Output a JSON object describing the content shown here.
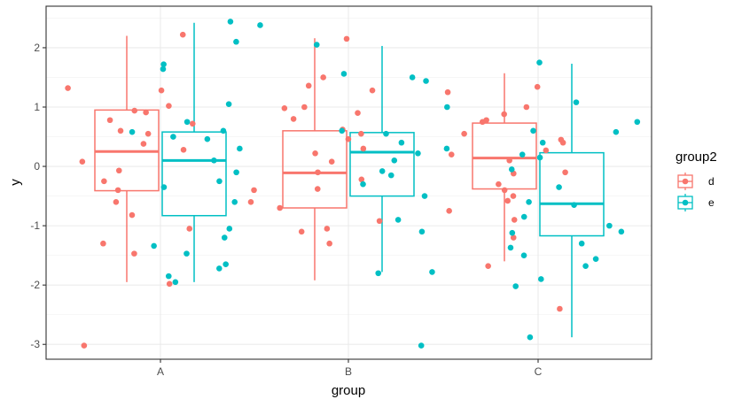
{
  "chart_data": {
    "type": "boxplot",
    "xlabel": "group",
    "ylabel": "y",
    "categories": [
      "A",
      "B",
      "C"
    ],
    "ylim": [
      -3.25,
      2.7
    ],
    "y_ticks": [
      -3,
      -2,
      -1,
      0,
      1,
      2
    ],
    "grid": true,
    "legend": {
      "title": "group2",
      "position": "right",
      "entries": [
        {
          "key": "d",
          "color": "#F8766D"
        },
        {
          "key": "e",
          "color": "#00BFC4"
        }
      ]
    },
    "series": [
      {
        "name": "d",
        "color": "#F8766D",
        "boxes": [
          {
            "category": "A",
            "min": -1.95,
            "q1": -0.41,
            "median": 0.25,
            "q3": 0.95,
            "max": 2.2
          },
          {
            "category": "B",
            "min": -1.92,
            "q1": -0.7,
            "median": -0.11,
            "q3": 0.6,
            "max": 2.16
          },
          {
            "category": "C",
            "min": -1.6,
            "q1": -0.38,
            "median": 0.14,
            "q3": 0.73,
            "max": 1.57
          }
        ],
        "points": [
          {
            "category": "A",
            "y": [
              2.22,
              1.32,
              0.94,
              0.78,
              0.6,
              0.38,
              0.08,
              -0.25,
              -0.82,
              -1.05,
              -1.98,
              -3.02,
              0.72,
              1.02,
              -0.07,
              0.28,
              -0.4,
              0.91,
              -1.3,
              1.28,
              -1.47,
              0.55,
              -0.6
            ]
          },
          {
            "category": "B",
            "y": [
              2.15,
              1.5,
              1.36,
              0.98,
              0.9,
              0.46,
              0.22,
              -0.1,
              -0.38,
              -0.6,
              -1.05,
              -1.3,
              -1.1,
              0.55,
              0.8,
              1.0,
              -0.7,
              -0.92,
              0.62,
              0.3,
              -0.22,
              -0.4,
              0.08,
              1.28
            ]
          },
          {
            "category": "C",
            "y": [
              1.25,
              0.78,
              0.75,
              0.4,
              0.1,
              -0.12,
              -0.5,
              -0.9,
              -1.2,
              -1.68,
              -2.4,
              0.27,
              0.55,
              1.34,
              1.0,
              -0.1,
              -0.3,
              0.45,
              -0.4,
              -0.58,
              0.88,
              0.2,
              -0.75
            ]
          }
        ]
      },
      {
        "name": "e",
        "color": "#00BFC4",
        "boxes": [
          {
            "category": "A",
            "min": -1.95,
            "q1": -0.83,
            "median": 0.1,
            "q3": 0.58,
            "max": 2.42
          },
          {
            "category": "B",
            "min": -1.78,
            "q1": -0.5,
            "median": 0.24,
            "q3": 0.57,
            "max": 2.03
          },
          {
            "category": "C",
            "min": -2.88,
            "q1": -1.17,
            "median": -0.63,
            "q3": 0.23,
            "max": 1.73
          }
        ],
        "points": [
          {
            "category": "A",
            "y": [
              2.44,
              2.38,
              2.1,
              1.72,
              1.64,
              1.05,
              0.75,
              0.6,
              0.58,
              0.5,
              0.3,
              0.1,
              -0.1,
              -0.35,
              -0.6,
              -1.05,
              -1.2,
              -1.34,
              -1.47,
              -1.65,
              -1.72,
              -1.85,
              -1.95,
              0.46,
              -0.25
            ]
          },
          {
            "category": "B",
            "y": [
              2.05,
              1.56,
              1.5,
              1.44,
              1.0,
              0.55,
              0.4,
              0.3,
              0.1,
              -0.08,
              -0.3,
              -0.5,
              -0.9,
              -1.1,
              -1.78,
              -1.8,
              -3.02,
              0.22,
              -0.15,
              0.6
            ]
          },
          {
            "category": "C",
            "y": [
              1.75,
              1.08,
              0.75,
              0.6,
              0.4,
              0.15,
              -0.05,
              -0.35,
              -0.6,
              -0.85,
              -1.0,
              -1.12,
              -1.3,
              -1.5,
              -1.68,
              -1.9,
              -2.02,
              -2.88,
              0.58,
              -0.65,
              -1.1,
              0.2,
              -1.37,
              -1.56
            ]
          }
        ]
      }
    ]
  }
}
